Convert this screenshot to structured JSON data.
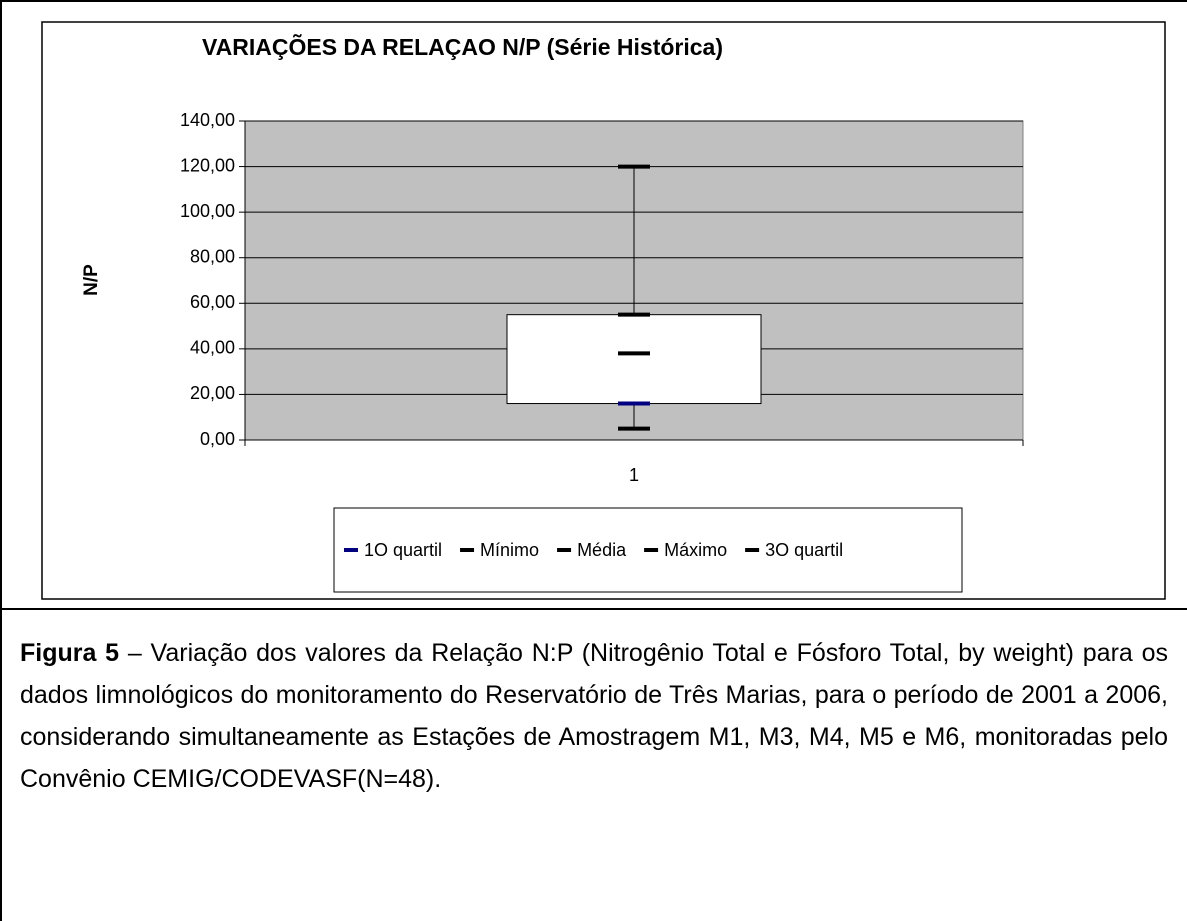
{
  "chart_data": {
    "type": "box",
    "title": "VARIAÇÕES DA RELAÇAO N/P (Série Histórica)",
    "ylabel": "N/P",
    "categories": [
      "1"
    ],
    "series": [
      {
        "name": "1O quartil",
        "color": "#000080",
        "values": [
          16
        ]
      },
      {
        "name": "Mínimo",
        "color": "#000000",
        "values": [
          5
        ]
      },
      {
        "name": "Média",
        "color": "#000000",
        "values": [
          38
        ]
      },
      {
        "name": "Máximo",
        "color": "#000000",
        "values": [
          120
        ]
      },
      {
        "name": "3O quartil",
        "color": "#000000",
        "values": [
          55
        ]
      }
    ],
    "ylim": [
      0,
      140
    ],
    "yticks": [
      {
        "value": 0,
        "label": "0,00"
      },
      {
        "value": 20,
        "label": "20,00"
      },
      {
        "value": 40,
        "label": "40,00"
      },
      {
        "value": 60,
        "label": "60,00"
      },
      {
        "value": 80,
        "label": "80,00"
      },
      {
        "value": 100,
        "label": "100,00"
      },
      {
        "value": 120,
        "label": "120,00"
      },
      {
        "value": 140,
        "label": "140,00"
      }
    ],
    "grid": true,
    "legend": "bottom"
  },
  "caption": {
    "label": "Figura 5",
    "text": "– Variação dos valores da Relação N:P (Nitrogênio Total e Fósforo Total, by weight) para os dados limnológicos do monitoramento do Reservatório de Três Marias, para o período de 2001 a 2006, considerando simultaneamente as Estações de Amostragem M1, M3, M4, M5 e M6, monitoradas pelo Convênio CEMIG/CODEVASF(N=48)."
  }
}
